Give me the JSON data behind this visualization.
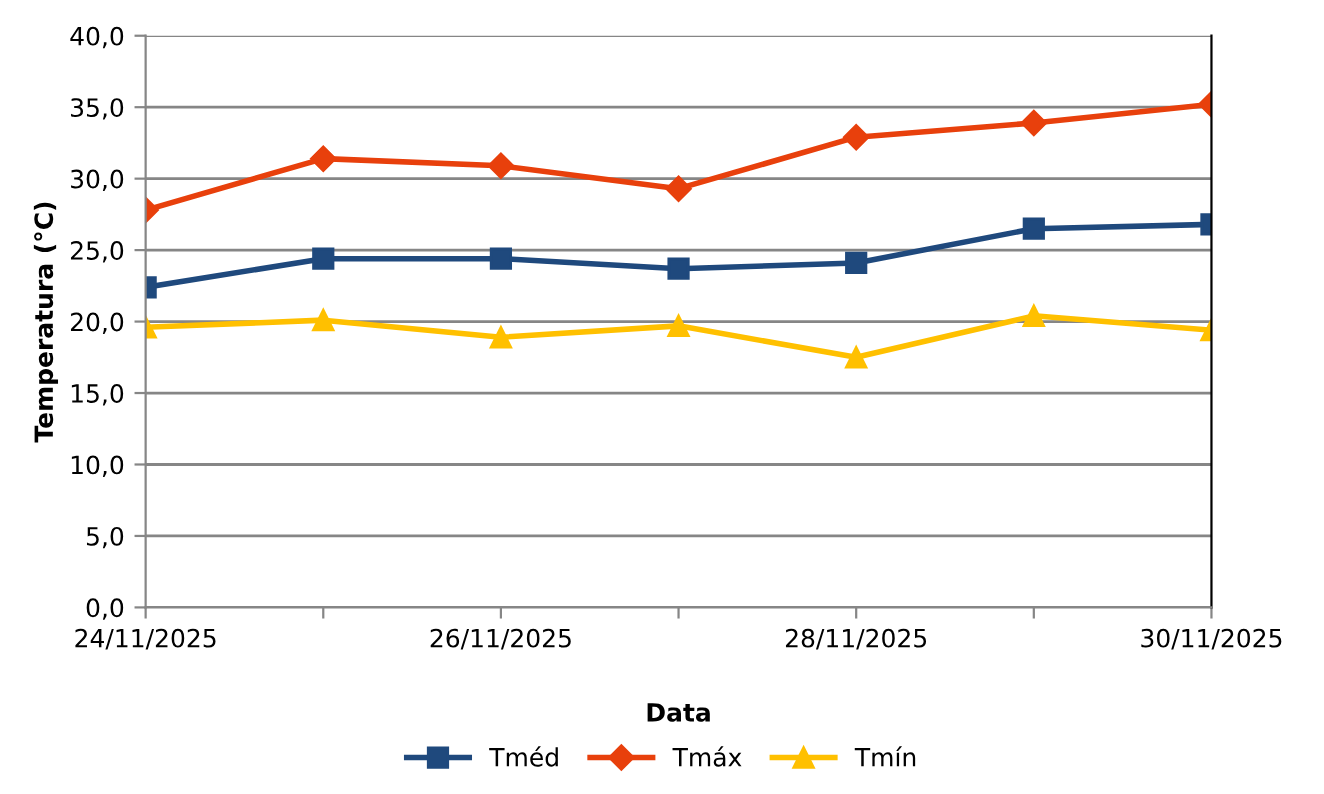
{
  "chart_data": {
    "type": "line",
    "xlabel": "Data",
    "ylabel": "Temperatura (°C)",
    "x": [
      "2025-11-24",
      "2025-11-25",
      "2025-11-26",
      "2025-11-27",
      "2025-11-28",
      "2025-11-29",
      "2025-11-30"
    ],
    "series": [
      {
        "name": "Tméd",
        "color": "#1f497d",
        "marker": "square",
        "values": [
          22.4,
          24.4,
          24.4,
          23.7,
          24.1,
          26.5,
          26.8
        ]
      },
      {
        "name": "Tmáx",
        "color": "#e8400c",
        "marker": "diamond",
        "values": [
          27.8,
          31.4,
          30.9,
          29.3,
          32.9,
          33.9,
          35.2
        ]
      },
      {
        "name": "Tmín",
        "color": "#ffc000",
        "marker": "triangle",
        "values": [
          19.6,
          20.1,
          18.9,
          19.7,
          17.5,
          20.4,
          19.4
        ]
      }
    ],
    "xlim": [
      "2025-11-24",
      "2025-11-30"
    ],
    "xticks": [
      {
        "value": "2025-11-24",
        "label": "24/11/2025"
      },
      {
        "value": "2025-11-25",
        "label": null
      },
      {
        "value": "2025-11-26",
        "label": "26/11/2025"
      },
      {
        "value": "2025-11-27",
        "label": null
      },
      {
        "value": "2025-11-28",
        "label": "28/11/2025"
      },
      {
        "value": "2025-11-29",
        "label": null
      },
      {
        "value": "2025-11-30",
        "label": "30/11/2025"
      }
    ],
    "ylim": [
      0,
      40
    ],
    "yticks": [
      {
        "value": 0,
        "label": "0,0"
      },
      {
        "value": 5,
        "label": "5,0"
      },
      {
        "value": 10,
        "label": "10,0"
      },
      {
        "value": 15,
        "label": "15,0"
      },
      {
        "value": 20,
        "label": "20,0"
      },
      {
        "value": 25,
        "label": "25,0"
      },
      {
        "value": 30,
        "label": "30,0"
      },
      {
        "value": 35,
        "label": "35,0"
      },
      {
        "value": 40,
        "label": "40,0"
      }
    ],
    "grid": "y",
    "legend": "bottom",
    "line_style": "solid"
  }
}
